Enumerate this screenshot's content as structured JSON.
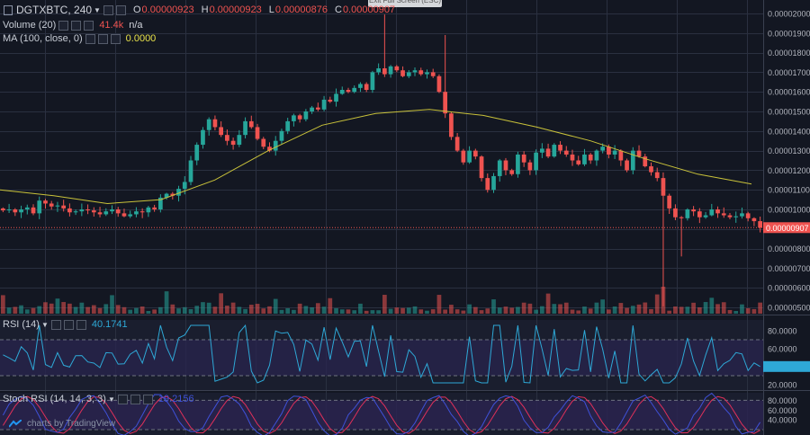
{
  "header": {
    "symbol": "DGTXBTC",
    "interval": "240",
    "ohlc": {
      "o_label": "O",
      "o": "0.00000923",
      "h_label": "H",
      "h": "0.00000923",
      "l_label": "L",
      "l": "0.00000876",
      "c_label": "C",
      "c": "0.00000907"
    },
    "exit_fullscreen": "Exit Full Screen (ESC)"
  },
  "indicators": {
    "volume": {
      "label": "Volume (20)",
      "value": "41.4k",
      "value2": "n/a"
    },
    "ma": {
      "label": "MA (100, close, 0)",
      "value": "0.0000"
    },
    "rsi": {
      "label": "RSI (14)",
      "value": "40.1741"
    },
    "stoch": {
      "label": "Stoch RSI (14, 14, 3, 3)",
      "value": "19.2156"
    }
  },
  "footer": {
    "brand": "charts by TradingView"
  },
  "colors": {
    "up": "#26a69a",
    "down": "#ef5350",
    "ma": "#c9c23a",
    "rsi": "#2ea8d6",
    "stoch_k": "#3f51d8",
    "stoch_d": "#e0305a",
    "price_tag": "#ef5350",
    "band": "#2a2350"
  },
  "chart_data": [
    {
      "type": "candlestick",
      "title": "",
      "ylim": [
        5e-06,
        2.1e-06
      ],
      "price_ticks": [
        "0.00002000",
        "0.00001900",
        "0.00001800",
        "0.00001700",
        "0.00001600",
        "0.00001500",
        "0.00001400",
        "0.00001300",
        "0.00001200",
        "0.00001100",
        "0.00001000",
        "0.00000900",
        "0.00000800",
        "0.00000700",
        "0.00000600",
        "0.00000500"
      ],
      "last_price": "0.00000907",
      "closes_e8": [
        995,
        1000,
        985,
        1000,
        1010,
        980,
        1045,
        1030,
        1015,
        1020,
        1005,
        985,
        990,
        1000,
        995,
        985,
        975,
        990,
        1000,
        980,
        965,
        975,
        990,
        985,
        1010,
        1000,
        1060,
        1080,
        1070,
        1105,
        1140,
        1250,
        1330,
        1405,
        1460,
        1420,
        1380,
        1350,
        1330,
        1380,
        1450,
        1420,
        1360,
        1320,
        1300,
        1350,
        1400,
        1450,
        1480,
        1460,
        1500,
        1520,
        1510,
        1560,
        1550,
        1590,
        1610,
        1600,
        1620,
        1640,
        1610,
        1700,
        1720,
        1690,
        1730,
        1710,
        1680,
        1700,
        1710,
        1690,
        1700,
        1680,
        1600,
        1490,
        1370,
        1300,
        1240,
        1300,
        1270,
        1160,
        1100,
        1170,
        1250,
        1200,
        1180,
        1280,
        1240,
        1200,
        1290,
        1310,
        1270,
        1330,
        1300,
        1280,
        1250,
        1230,
        1280,
        1250,
        1300,
        1320,
        1280,
        1300,
        1250,
        1200,
        1300,
        1270,
        1220,
        1190,
        1160,
        1070,
        1005,
        960,
        955,
        1000,
        990,
        960,
        970,
        1000,
        980,
        970,
        960,
        965,
        980,
        955,
        940,
        907
      ],
      "ma_e8": [
        1100,
        1070,
        1030,
        1050,
        1150,
        1300,
        1430,
        1490,
        1510,
        1480,
        1420,
        1350,
        1260,
        1180,
        1130
      ]
    },
    {
      "type": "line",
      "name": "RSI (14)",
      "ylim": [
        20,
        90
      ],
      "ticks": [
        "80.0000",
        "60.0000",
        "40.0000",
        "20.0000"
      ],
      "bands": [
        70,
        30
      ],
      "last": 40.1741
    },
    {
      "type": "line",
      "name": "Stoch RSI (14, 14, 3, 3)",
      "ylim": [
        20,
        90
      ],
      "ticks": [
        "80.0000",
        "60.0000",
        "40.0000"
      ],
      "bands": [
        80,
        20
      ]
    }
  ]
}
